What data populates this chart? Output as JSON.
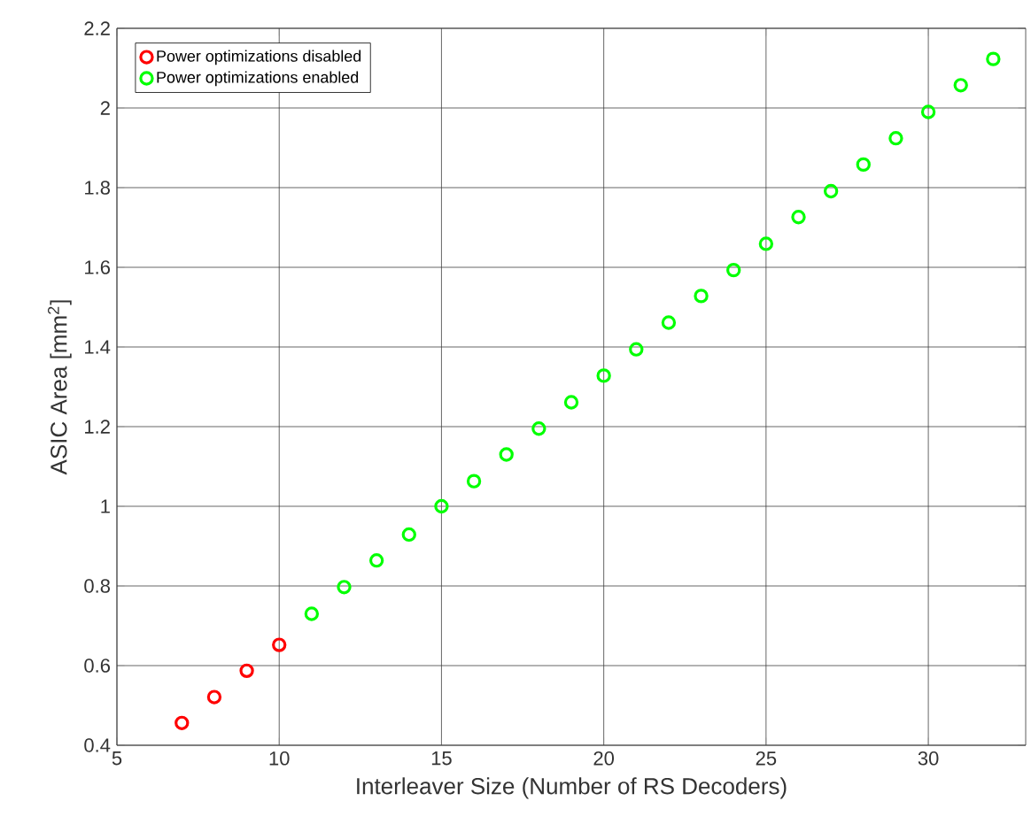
{
  "chart_data": {
    "type": "scatter",
    "xlabel": "Interleaver Size (Number of RS Decoders)",
    "ylabel": "ASIC Area [mm$^{2}$]",
    "xlim": [
      5,
      33
    ],
    "xticks": [
      5,
      10,
      15,
      20,
      25,
      30
    ],
    "ylim": [
      0.4,
      2.2
    ],
    "yticks": [
      0.4,
      0.6,
      0.8,
      1,
      1.2,
      1.4,
      1.6,
      1.8,
      2,
      2.2
    ],
    "grid": true,
    "legend": "top left",
    "marker": "circle",
    "series": [
      {
        "name": "Power optimizations disabled",
        "color": "#ff0000",
        "x": [
          7,
          8,
          9,
          10
        ],
        "values": [
          0.456,
          0.521,
          0.587,
          0.652
        ]
      },
      {
        "name": "Power optimizations enabled",
        "color": "#00ff00",
        "x": [
          11,
          12,
          13,
          14,
          15,
          16,
          17,
          18,
          19,
          20,
          21,
          22,
          23,
          24,
          25,
          26,
          27,
          28,
          29,
          30,
          31,
          32
        ],
        "values": [
          0.73,
          0.797,
          0.864,
          0.929,
          1.0,
          1.063,
          1.13,
          1.195,
          1.261,
          1.328,
          1.394,
          1.461,
          1.528,
          1.593,
          1.659,
          1.726,
          1.791,
          1.858,
          1.924,
          1.99,
          2.057,
          2.123
        ]
      }
    ]
  }
}
